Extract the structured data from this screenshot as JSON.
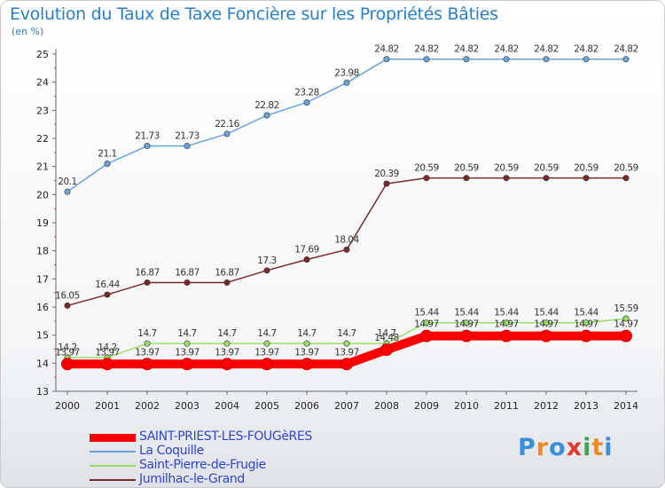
{
  "header": {
    "title": "Evolution du Taux de Taxe Foncière sur les Propriétés Bâties",
    "unit": "(en %)"
  },
  "logo": {
    "letters": [
      "P",
      "r",
      "o",
      "x",
      "i",
      "t",
      "i"
    ],
    "colors": [
      "#3a8fd8",
      "#f08a24",
      "#3a8fd8",
      "#e23c2e",
      "#3aa84a",
      "#f08a24",
      "#3a8fd8"
    ]
  },
  "chart_data": {
    "type": "line",
    "x": [
      2000,
      2001,
      2002,
      2003,
      2004,
      2005,
      2006,
      2007,
      2008,
      2009,
      2010,
      2011,
      2012,
      2013,
      2014
    ],
    "ylim": [
      13,
      25
    ],
    "yticks": [
      13,
      14,
      15,
      16,
      17,
      18,
      19,
      20,
      21,
      22,
      23,
      24,
      25
    ],
    "grid": false,
    "legend_position": "bottom-left",
    "series": [
      {
        "name": "SAINT-PRIEST-LES-FOUGèRES",
        "color": "#ff0000",
        "values": [
          13.97,
          13.97,
          13.97,
          13.97,
          13.97,
          13.97,
          13.97,
          13.97,
          14.48,
          14.97,
          14.97,
          14.97,
          14.97,
          14.97,
          14.97
        ],
        "labels": [
          "13.97",
          "13.97",
          "13.97",
          "13.97",
          "13.97",
          "13.97",
          "13.97",
          "13.97",
          "14.48",
          "14.97",
          "14.97",
          "14.97",
          "14.97",
          "14.97",
          "14.97"
        ]
      },
      {
        "name": "La Coquille",
        "color": "#6aa3d8",
        "values": [
          20.1,
          21.1,
          21.73,
          21.73,
          22.16,
          22.82,
          23.28,
          23.98,
          24.82,
          24.82,
          24.82,
          24.82,
          24.82,
          24.82,
          24.82
        ],
        "labels": [
          "20.1",
          "21.1",
          "21.73",
          "21.73",
          "22.16",
          "22.82",
          "23.28",
          "23.98",
          "24.82",
          "24.82",
          "24.82",
          "24.82",
          "24.82",
          "24.82",
          "24.82"
        ]
      },
      {
        "name": "Saint-Pierre-de-Frugie",
        "color": "#99dd66",
        "values": [
          14.2,
          14.2,
          14.7,
          14.7,
          14.7,
          14.7,
          14.7,
          14.7,
          14.7,
          15.44,
          15.44,
          15.44,
          15.44,
          15.44,
          15.59
        ],
        "labels": [
          "14.2",
          "14.2",
          "14.7",
          "14.7",
          "14.7",
          "14.7",
          "14.7",
          "14.7",
          "14.7",
          "15.44",
          "15.44",
          "15.44",
          "15.44",
          "15.44",
          "15.59"
        ]
      },
      {
        "name": "Jumilhac-le-Grand",
        "color": "#7a2a2a",
        "values": [
          16.05,
          16.44,
          16.87,
          16.87,
          16.87,
          17.3,
          17.69,
          18.04,
          20.39,
          20.59,
          20.59,
          20.59,
          20.59,
          20.59,
          20.59
        ],
        "labels": [
          "16.05",
          "16.44",
          "16.87",
          "16.87",
          "16.87",
          "17.3",
          "17.69",
          "18.04",
          "20.39",
          "20.59",
          "20.59",
          "20.59",
          "20.59",
          "20.59",
          "20.59"
        ]
      }
    ]
  }
}
